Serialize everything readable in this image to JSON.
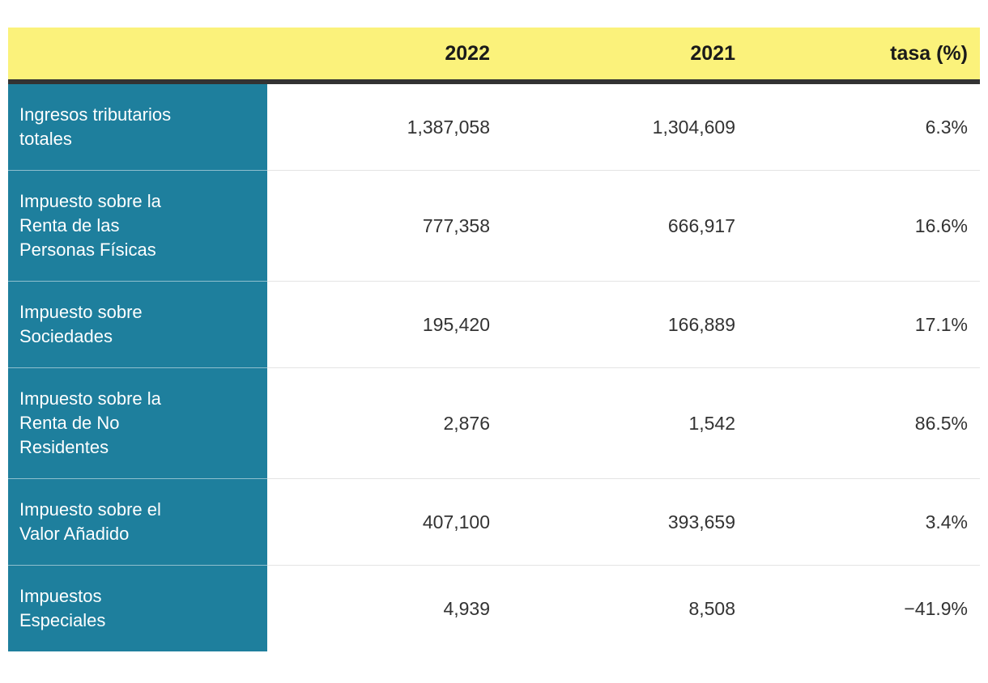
{
  "table": {
    "header": {
      "row_label_column": "",
      "col_2022": "2022",
      "col_2021": "2021",
      "col_rate": "tasa (%)"
    },
    "rows": [
      {
        "label": "Ingresos tributarios\ntotales",
        "v2022": "1,387,058",
        "v2021": "1,304,609",
        "rate": "6.3%"
      },
      {
        "label": "Impuesto sobre la\nRenta de las\nPersonas Físicas",
        "v2022": "777,358",
        "v2021": "666,917",
        "rate": "16.6%"
      },
      {
        "label": "Impuesto sobre\nSociedades",
        "v2022": "195,420",
        "v2021": "166,889",
        "rate": "17.1%"
      },
      {
        "label": "Impuesto sobre la\nRenta de No\nResidentes",
        "v2022": "2,876",
        "v2021": "1,542",
        "rate": "86.5%"
      },
      {
        "label": "Impuesto sobre el\nValor Añadido",
        "v2022": "407,100",
        "v2021": "393,659",
        "rate": "3.4%"
      },
      {
        "label": "Impuestos\nEspeciales",
        "v2022": "4,939",
        "v2021": "8,508",
        "rate": "−41.9%"
      }
    ],
    "colors": {
      "header_bg": "#fbf27b",
      "label_bg": "#1e7f9d",
      "header_rule": "#333333",
      "value_text": "#333333",
      "label_text": "#ffffff",
      "row_divider": "#e4e4e4"
    }
  },
  "chart_data": {
    "type": "table",
    "title": "",
    "columns": [
      "",
      "2022",
      "2021",
      "tasa (%)"
    ],
    "row_labels": [
      "Ingresos tributarios totales",
      "Impuesto sobre la Renta de las Personas Físicas",
      "Impuesto sobre Sociedades",
      "Impuesto sobre la Renta de No Residentes",
      "Impuesto sobre el Valor Añadido",
      "Impuestos Especiales"
    ],
    "series": [
      {
        "name": "2022",
        "values": [
          1387058,
          777358,
          195420,
          2876,
          407100,
          4939
        ]
      },
      {
        "name": "2021",
        "values": [
          1304609,
          666917,
          166889,
          1542,
          393659,
          8508
        ]
      },
      {
        "name": "tasa (%)",
        "values": [
          6.3,
          16.6,
          17.1,
          86.5,
          3.4,
          -41.9
        ]
      }
    ]
  }
}
